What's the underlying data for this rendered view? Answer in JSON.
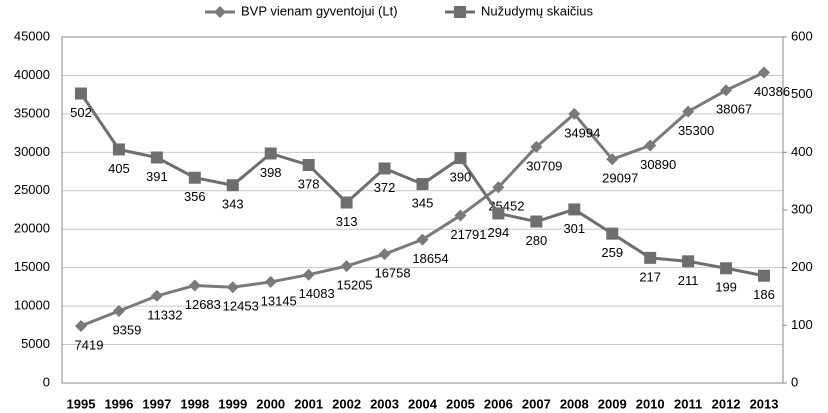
{
  "chart_data": {
    "type": "line",
    "categories": [
      "1995",
      "1996",
      "1997",
      "1998",
      "1999",
      "2000",
      "2001",
      "2002",
      "2003",
      "2004",
      "2005",
      "2006",
      "2007",
      "2008",
      "2009",
      "2010",
      "2011",
      "2012",
      "2013"
    ],
    "series": [
      {
        "name": "BVP vienam gyventojui (Lt)",
        "color": "#7a7a7a",
        "marker": "diamond",
        "axis": "y",
        "values": [
          7419,
          9359,
          11332,
          12683,
          12453,
          13145,
          14083,
          15205,
          16758,
          18654,
          21791,
          25452,
          30709,
          34994,
          29097,
          30890,
          35300,
          38067,
          40386
        ]
      },
      {
        "name": "Nužudymų skaičius",
        "color": "#6e6e6e",
        "marker": "square",
        "axis": "y2",
        "values": [
          502,
          405,
          391,
          356,
          343,
          398,
          378,
          313,
          372,
          345,
          390,
          294,
          280,
          301,
          259,
          217,
          211,
          199,
          186
        ]
      }
    ],
    "ylim": [
      0,
      45000
    ],
    "yticks": [
      0,
      5000,
      10000,
      15000,
      20000,
      25000,
      30000,
      35000,
      40000,
      45000
    ],
    "y2lim": [
      0,
      600
    ],
    "y2ticks": [
      0,
      100,
      200,
      300,
      400,
      500,
      600
    ],
    "grid": true,
    "legend": "top"
  }
}
